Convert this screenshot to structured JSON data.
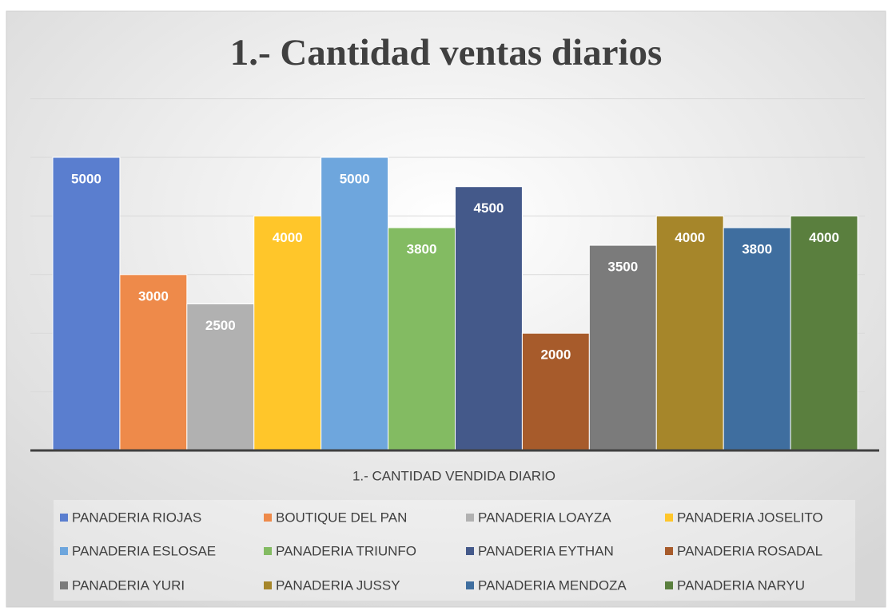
{
  "chart_data": {
    "type": "bar",
    "title": "1.- Cantidad ventas diarios",
    "categories": [
      "1.- CANTIDAD VENDIDA DIARIO"
    ],
    "series": [
      {
        "name": "PANADERIA RIOJAS",
        "color": "#5a7ecf",
        "values": [
          5000
        ]
      },
      {
        "name": "BOUTIQUE DEL PAN",
        "color": "#ee8a4a",
        "values": [
          3000
        ]
      },
      {
        "name": "PANADERIA LOAYZA",
        "color": "#b1b1b1",
        "values": [
          2500
        ]
      },
      {
        "name": "PANADERIA JOSELITO",
        "color": "#ffc62a",
        "values": [
          4000
        ]
      },
      {
        "name": "PANADERIA ESLOSAE",
        "color": "#6ea6dd",
        "values": [
          5000
        ]
      },
      {
        "name": "PANADERIA TRIUNFO",
        "color": "#83bb62",
        "values": [
          3800
        ]
      },
      {
        "name": "PANADERIA EYTHAN",
        "color": "#44598a",
        "values": [
          4500
        ]
      },
      {
        "name": "PANADERIA ROSADAL",
        "color": "#a75b2b",
        "values": [
          2000
        ]
      },
      {
        "name": "PANADERIA YURI",
        "color": "#7b7b7b",
        "values": [
          3500
        ]
      },
      {
        "name": "PANADERIA JUSSY",
        "color": "#a6862a",
        "values": [
          4000
        ]
      },
      {
        "name": "PANADERIA MENDOZA",
        "color": "#3f6e9f",
        "values": [
          3800
        ]
      },
      {
        "name": "PANADERIA NARYU",
        "color": "#5a7f3e",
        "values": [
          4000
        ]
      }
    ],
    "ylim": [
      0,
      6000
    ],
    "yticks": [
      0,
      1000,
      2000,
      3000,
      4000,
      5000,
      6000
    ],
    "grid": true,
    "legend": "bottom"
  }
}
